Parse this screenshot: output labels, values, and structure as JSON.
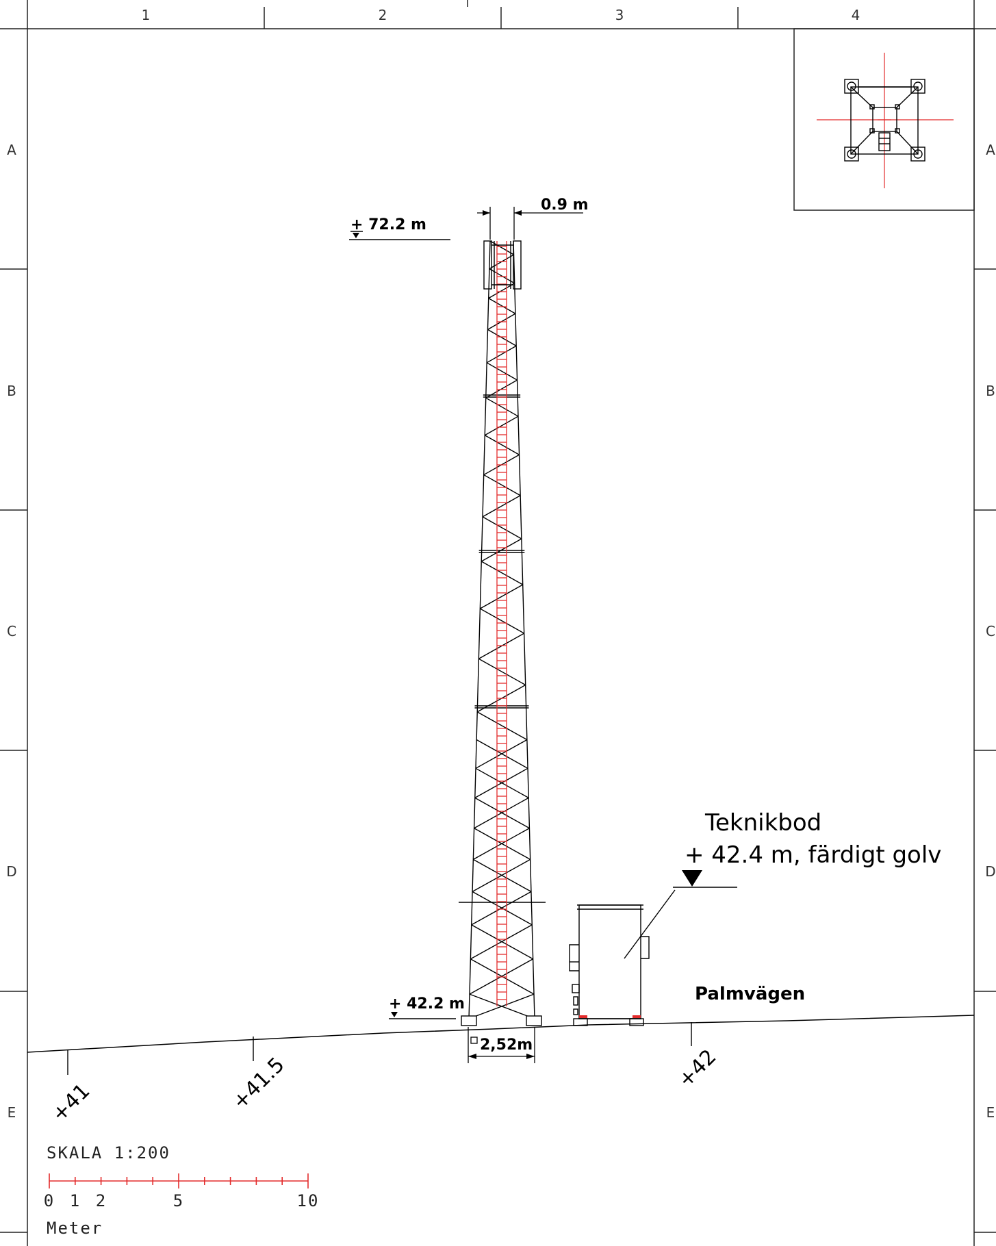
{
  "grid": {
    "columns": [
      "1",
      "2",
      "3",
      "4"
    ],
    "rows": [
      "A",
      "B",
      "C",
      "D",
      "E"
    ]
  },
  "labels": {
    "top_height": "+ 72.2 m",
    "top_width": "0.9 m",
    "base_height": "+ 42.2 m",
    "base_width": "2,52m",
    "shed_title": "Teknikbod",
    "shed_floor": "+ 42.4 m, färdigt golv",
    "road": "Palmvägen"
  },
  "contours": [
    "+41",
    "+41.5",
    "+42"
  ],
  "scale": {
    "title": "SKALA 1:200",
    "ticks": [
      "0",
      "1",
      "2",
      "5",
      "10"
    ],
    "unit": "Meter"
  },
  "colors": {
    "line": "#000000",
    "ladder": "#e32b2b",
    "grid": "#222222"
  }
}
